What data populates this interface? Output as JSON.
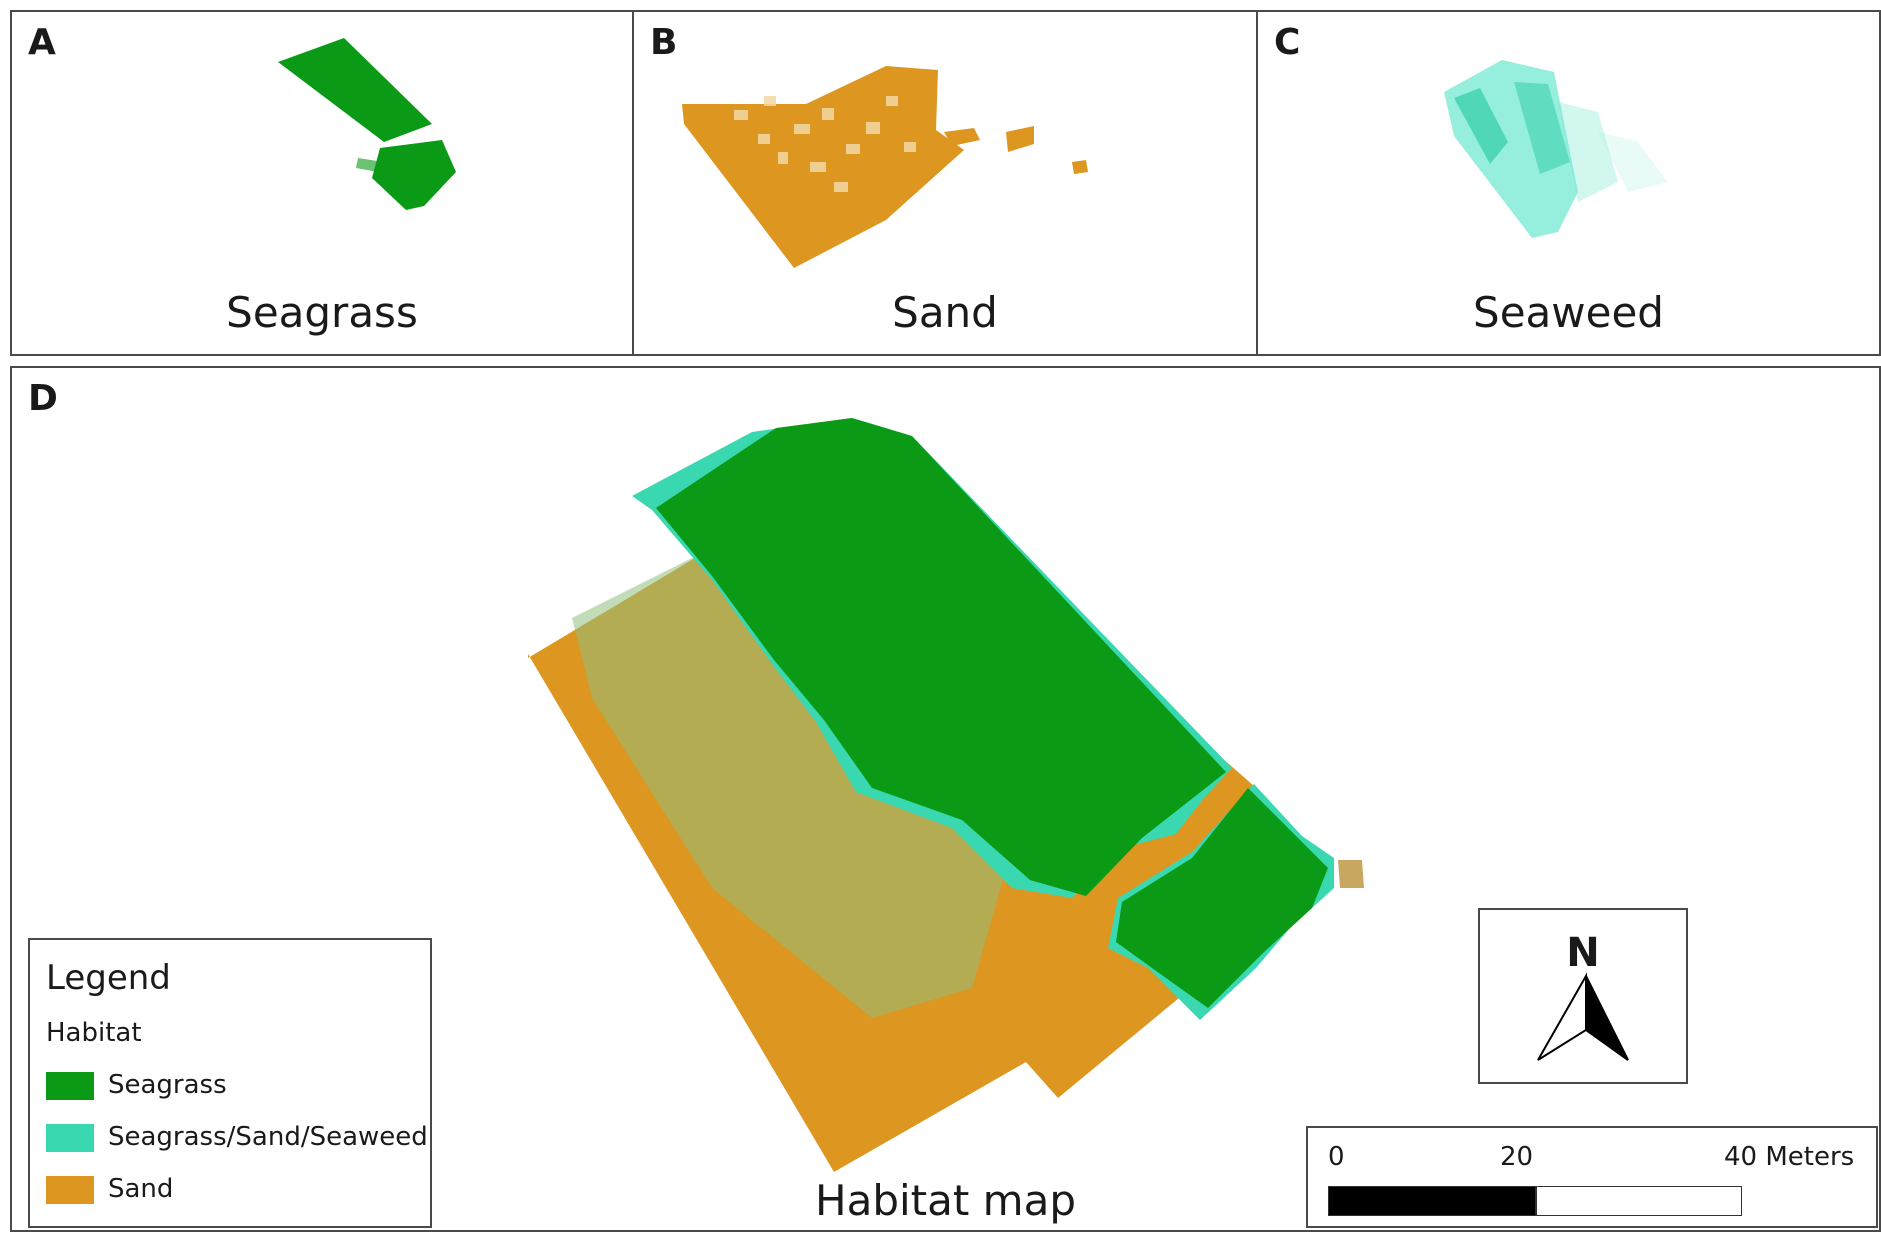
{
  "panels": {
    "a": {
      "letter": "A",
      "caption": "Seagrass"
    },
    "b": {
      "letter": "B",
      "caption": "Sand"
    },
    "c": {
      "letter": "C",
      "caption": "Seaweed"
    },
    "d": {
      "letter": "D",
      "caption": "Habitat map"
    }
  },
  "legend": {
    "title": "Legend",
    "subtitle": "Habitat",
    "items": [
      {
        "label": "Seagrass",
        "color": "#0a9a16"
      },
      {
        "label": "Seagrass/Sand/Seaweed",
        "color": "#3ad8b0"
      },
      {
        "label": "Sand",
        "color": "#dd961f"
      }
    ]
  },
  "north_arrow": {
    "letter": "N",
    "icon": "north-arrow-icon"
  },
  "scale_bar": {
    "labels": [
      "0",
      "20",
      "40 Meters"
    ]
  },
  "colors": {
    "seagrass": "#0a9a16",
    "sand": "#dd961f",
    "mixed": "#3ad8b0",
    "seaweed": "#40e0c0",
    "sand_light": "#f2d9a4"
  }
}
